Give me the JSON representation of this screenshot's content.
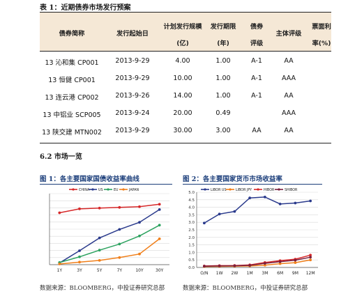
{
  "table": {
    "title": "表 1：近期债券市场发行预案",
    "headers": [
      {
        "line1": "债券简称",
        "line2": ""
      },
      {
        "line1": "发行起始日",
        "line2": ""
      },
      {
        "line1": "计划发行规模",
        "line2": "(亿)"
      },
      {
        "line1": "发行期限",
        "line2": "(年)"
      },
      {
        "line1": "债券",
        "line2": "评级"
      },
      {
        "line1": "主体评级",
        "line2": ""
      },
      {
        "line1": "票面利",
        "line2": "率(%)"
      }
    ],
    "rows": [
      [
        "13 沁和集 CP001",
        "2013-9-29",
        "4.00",
        "1.00",
        "A-1",
        "AA",
        ""
      ],
      [
        "13 恒健 CP001",
        "2013-9-29",
        "10.00",
        "1.00",
        "A-1",
        "AAA",
        ""
      ],
      [
        "13 连云港 CP002",
        "2013-9-26",
        "14.00",
        "1.00",
        "A-1",
        "AA",
        ""
      ],
      [
        "13 中铝业 SCP005",
        "2013-9-24",
        "20.00",
        "0.49",
        "",
        "AAA",
        ""
      ],
      [
        "13 陕交建 MTN002",
        "2013-9-29",
        "30.00",
        "3.00",
        "AA",
        "AA",
        ""
      ]
    ]
  },
  "section": {
    "title": "6.2 市场一览"
  },
  "figures": [
    {
      "title": "图 1：各主要国家国债收益率曲线",
      "source": "数据来源：BLOOMBERG，中投证券研究总部"
    },
    {
      "title": "图 2：各主要国家货币市场收益率",
      "source": "数据来源：BLOOMBERG，中投证券研究总部"
    }
  ],
  "chart_data": [
    {
      "type": "line",
      "categories": [
        "1Y",
        "3Y",
        "5Y",
        "7Y",
        "10Y",
        "30Y"
      ],
      "ylim": [
        0,
        5
      ],
      "yticks": [
        "0",
        "0.5",
        "1",
        "1.5",
        "2",
        "2.5",
        "3",
        "3.5",
        "4",
        "4.5",
        "5"
      ],
      "grid": true,
      "legend": "top",
      "series": [
        {
          "name": "CHINA",
          "color": "#d62728",
          "values": [
            3.65,
            3.93,
            3.98,
            4.03,
            4.08,
            4.25
          ]
        },
        {
          "name": "US",
          "color": "#2a3a8c",
          "values": [
            0.12,
            0.98,
            1.88,
            2.48,
            2.98,
            3.88
          ]
        },
        {
          "name": "EU",
          "color": "#2ca25f",
          "values": [
            0.15,
            0.55,
            1.02,
            1.45,
            2.02,
            2.78
          ]
        },
        {
          "name": "JAPAN",
          "color": "#f07f1a",
          "values": [
            0.05,
            0.18,
            0.3,
            0.5,
            0.75,
            1.82
          ]
        }
      ]
    },
    {
      "type": "line",
      "categories": [
        "O/N",
        "1W",
        "2W",
        "1M",
        "3M",
        "6M",
        "9M",
        "12M"
      ],
      "ylim": [
        0,
        5
      ],
      "yticks": [
        "0.0",
        "0.5",
        "1.0",
        "1.5",
        "2.0",
        "2.5",
        "3.0",
        "3.5",
        "4.0",
        "4.5",
        "5.0"
      ],
      "grid": true,
      "legend": "top",
      "series": [
        {
          "name": "LIBOR US",
          "color": "#2a3a8c",
          "values": [
            2.95,
            3.55,
            3.72,
            4.62,
            4.68,
            4.22,
            4.28,
            4.42
          ]
        },
        {
          "name": "LIBOR JPY",
          "color": "#f07f1a",
          "values": [
            0.06,
            0.07,
            0.08,
            0.1,
            0.15,
            0.25,
            0.32,
            0.5
          ]
        },
        {
          "name": "HIBOR",
          "color": "#d62728",
          "values": [
            0.1,
            0.12,
            0.13,
            0.17,
            0.33,
            0.45,
            0.55,
            0.82
          ]
        },
        {
          "name": "SHIBOR",
          "color": "#7a1f3d",
          "values": [
            0.08,
            0.1,
            0.11,
            0.14,
            0.27,
            0.38,
            0.48,
            0.68
          ]
        }
      ]
    }
  ]
}
